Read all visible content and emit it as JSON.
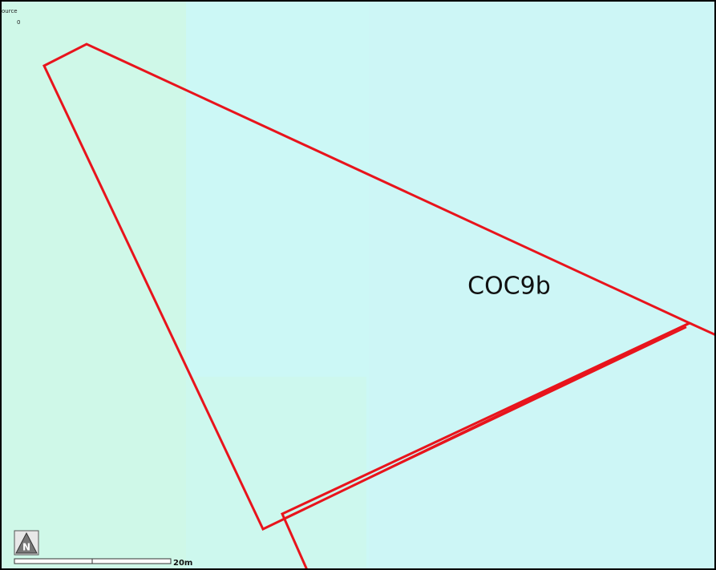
{
  "legend": {
    "title": "ource",
    "value": "0"
  },
  "parcel": {
    "label": "COC9b"
  },
  "north_arrow": {
    "label": "N"
  },
  "scale_bar": {
    "label": "20m"
  }
}
